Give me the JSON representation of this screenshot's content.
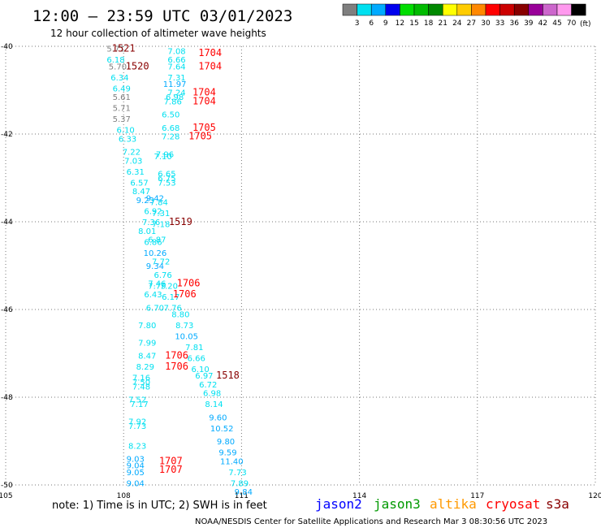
{
  "chart_data": {
    "type": "scatter",
    "title": "12:00 – 23:59 UTC 03/01/2023",
    "subtitle": "12 hour collection of altimeter wave heights",
    "xlim": [
      105,
      120
    ],
    "ylim": [
      -50,
      -40
    ],
    "x_ticks": [
      105,
      108,
      111,
      114,
      117,
      120
    ],
    "y_ticks": [
      -40,
      -42,
      -44,
      -46,
      -48,
      -50
    ],
    "grid": "dotted",
    "legend": {
      "unit": "(ft)",
      "bins": [
        {
          "label": "3",
          "color": "#7f7f7f"
        },
        {
          "label": "6",
          "color": "#00e0f0"
        },
        {
          "label": "9",
          "color": "#00aaff"
        },
        {
          "label": "12",
          "color": "#0000ee"
        },
        {
          "label": "15",
          "color": "#00dd00"
        },
        {
          "label": "18",
          "color": "#00bb00"
        },
        {
          "label": "21",
          "color": "#008800"
        },
        {
          "label": "24",
          "color": "#ffff00"
        },
        {
          "label": "27",
          "color": "#ffcc00"
        },
        {
          "label": "30",
          "color": "#ff8800"
        },
        {
          "label": "33",
          "color": "#ff0000"
        },
        {
          "label": "36",
          "color": "#cc0000"
        },
        {
          "label": "39",
          "color": "#880000"
        },
        {
          "label": "42",
          "color": "#990099"
        },
        {
          "label": "45",
          "color": "#cc66cc"
        },
        {
          "label": "70",
          "color": "#ff99ee"
        },
        {
          "label": "",
          "color": "#000000"
        }
      ]
    },
    "satellites": [
      {
        "name": "jason2",
        "color": "#0000ff"
      },
      {
        "name": "jason3",
        "color": "#009900"
      },
      {
        "name": "altika",
        "color": "#ff9900"
      },
      {
        "name": "cryosat",
        "color": "#ff0000"
      },
      {
        "name": "s3a",
        "color": "#880000"
      }
    ],
    "note": "note: 1) Time is in UTC; 2) SWH is in feet",
    "footer": "NOAA/NESDIS Center for Satellite Applications and Research   Mar  3 08:30:56 UTC 2023",
    "swh_points": [
      {
        "lon": 107.8,
        "lat": -40.05,
        "value": "5.71"
      },
      {
        "lon": 107.8,
        "lat": -40.3,
        "value": "6.18"
      },
      {
        "lon": 107.85,
        "lat": -40.45,
        "value": "5.70"
      },
      {
        "lon": 107.9,
        "lat": -40.7,
        "value": "6.34"
      },
      {
        "lon": 107.95,
        "lat": -40.95,
        "value": "6.49"
      },
      {
        "lon": 107.95,
        "lat": -41.15,
        "value": "5.61"
      },
      {
        "lon": 107.95,
        "lat": -41.4,
        "value": "5.71"
      },
      {
        "lon": 107.95,
        "lat": -41.65,
        "value": "5.37"
      },
      {
        "lon": 108.05,
        "lat": -41.9,
        "value": "6.10"
      },
      {
        "lon": 108.1,
        "lat": -42.1,
        "value": "6.33"
      },
      {
        "lon": 108.2,
        "lat": -42.4,
        "value": "7.22"
      },
      {
        "lon": 108.25,
        "lat": -42.6,
        "value": "7.03"
      },
      {
        "lon": 108.3,
        "lat": -42.85,
        "value": "6.31"
      },
      {
        "lon": 108.4,
        "lat": -43.1,
        "value": "6.57"
      },
      {
        "lon": 108.45,
        "lat": -43.3,
        "value": "8.47"
      },
      {
        "lon": 108.55,
        "lat": -43.5,
        "value": "9.23"
      },
      {
        "lon": 108.8,
        "lat": -43.45,
        "value": "9.42"
      },
      {
        "lon": 108.75,
        "lat": -43.75,
        "value": "6.92"
      },
      {
        "lon": 108.9,
        "lat": -43.55,
        "value": "7.84"
      },
      {
        "lon": 108.95,
        "lat": -43.8,
        "value": "7.31"
      },
      {
        "lon": 108.7,
        "lat": -44.0,
        "value": "7.36"
      },
      {
        "lon": 108.95,
        "lat": -44.05,
        "value": "7.18"
      },
      {
        "lon": 108.6,
        "lat": -44.2,
        "value": "8.01"
      },
      {
        "lon": 108.85,
        "lat": -44.4,
        "value": "6.87"
      },
      {
        "lon": 108.75,
        "lat": -44.45,
        "value": "6.86"
      },
      {
        "lon": 108.8,
        "lat": -44.7,
        "value": "10.26"
      },
      {
        "lon": 108.95,
        "lat": -44.9,
        "value": "7.72"
      },
      {
        "lon": 108.8,
        "lat": -45.0,
        "value": "9.34"
      },
      {
        "lon": 109.0,
        "lat": -45.2,
        "value": "6.76"
      },
      {
        "lon": 108.85,
        "lat": -45.4,
        "value": "7.46"
      },
      {
        "lon": 108.85,
        "lat": -45.45,
        "value": "7.79"
      },
      {
        "lon": 109.15,
        "lat": -45.45,
        "value": "7.20"
      },
      {
        "lon": 108.75,
        "lat": -45.65,
        "value": "6.43"
      },
      {
        "lon": 109.2,
        "lat": -45.7,
        "value": "6.17"
      },
      {
        "lon": 108.8,
        "lat": -45.95,
        "value": "6.70"
      },
      {
        "lon": 109.25,
        "lat": -45.95,
        "value": "7.76"
      },
      {
        "lon": 109.45,
        "lat": -46.1,
        "value": "8.80"
      },
      {
        "lon": 108.6,
        "lat": -46.35,
        "value": "7.80"
      },
      {
        "lon": 109.55,
        "lat": -46.35,
        "value": "8.73"
      },
      {
        "lon": 109.6,
        "lat": -46.6,
        "value": "10.05"
      },
      {
        "lon": 108.6,
        "lat": -46.75,
        "value": "7.99"
      },
      {
        "lon": 109.8,
        "lat": -46.85,
        "value": "7.81"
      },
      {
        "lon": 108.6,
        "lat": -47.05,
        "value": "8.47"
      },
      {
        "lon": 109.85,
        "lat": -47.1,
        "value": "6.66"
      },
      {
        "lon": 108.55,
        "lat": -47.3,
        "value": "8.29"
      },
      {
        "lon": 109.95,
        "lat": -47.35,
        "value": "6.10"
      },
      {
        "lon": 110.05,
        "lat": -47.5,
        "value": "6.97"
      },
      {
        "lon": 108.45,
        "lat": -47.55,
        "value": "7.16"
      },
      {
        "lon": 108.45,
        "lat": -47.65,
        "value": "7.50"
      },
      {
        "lon": 108.45,
        "lat": -47.75,
        "value": "7.48"
      },
      {
        "lon": 110.15,
        "lat": -47.7,
        "value": "6.72"
      },
      {
        "lon": 110.25,
        "lat": -47.9,
        "value": "6.98"
      },
      {
        "lon": 110.3,
        "lat": -48.15,
        "value": "8.14"
      },
      {
        "lon": 108.35,
        "lat": -48.05,
        "value": "7.52"
      },
      {
        "lon": 108.4,
        "lat": -48.15,
        "value": "7.17"
      },
      {
        "lon": 110.4,
        "lat": -48.45,
        "value": "9.60"
      },
      {
        "lon": 108.35,
        "lat": -48.55,
        "value": "7.92"
      },
      {
        "lon": 108.35,
        "lat": -48.65,
        "value": "7.73"
      },
      {
        "lon": 110.5,
        "lat": -48.7,
        "value": "10.52"
      },
      {
        "lon": 110.6,
        "lat": -49.0,
        "value": "9.80"
      },
      {
        "lon": 108.35,
        "lat": -49.1,
        "value": "8.23"
      },
      {
        "lon": 110.65,
        "lat": -49.25,
        "value": "9.59"
      },
      {
        "lon": 108.3,
        "lat": -49.4,
        "value": "9.03"
      },
      {
        "lon": 110.75,
        "lat": -49.45,
        "value": "11.40"
      },
      {
        "lon": 108.3,
        "lat": -49.55,
        "value": "9.04"
      },
      {
        "lon": 110.9,
        "lat": -49.7,
        "value": "7.73"
      },
      {
        "lon": 108.3,
        "lat": -49.7,
        "value": "9.05"
      },
      {
        "lon": 110.95,
        "lat": -49.95,
        "value": "7.89"
      },
      {
        "lon": 108.3,
        "lat": -49.95,
        "value": "9.04"
      },
      {
        "lon": 111.05,
        "lat": -50.15,
        "value": "9.84"
      },
      {
        "lon": 109.35,
        "lat": -40.1,
        "value": "7.08"
      },
      {
        "lon": 109.35,
        "lat": -40.3,
        "value": "6.66"
      },
      {
        "lon": 109.35,
        "lat": -40.45,
        "value": "7.64"
      },
      {
        "lon": 109.35,
        "lat": -40.7,
        "value": "7.31"
      },
      {
        "lon": 109.3,
        "lat": -40.85,
        "value": "11.97"
      },
      {
        "lon": 109.35,
        "lat": -41.05,
        "value": "7.24"
      },
      {
        "lon": 109.3,
        "lat": -41.15,
        "value": "6.98"
      },
      {
        "lon": 109.25,
        "lat": -41.25,
        "value": "7.86"
      },
      {
        "lon": 109.2,
        "lat": -41.55,
        "value": "6.50"
      },
      {
        "lon": 109.2,
        "lat": -41.85,
        "value": "6.68"
      },
      {
        "lon": 109.2,
        "lat": -42.05,
        "value": "7.28"
      },
      {
        "lon": 109.05,
        "lat": -42.45,
        "value": "7.96"
      },
      {
        "lon": 109.0,
        "lat": -42.5,
        "value": "7.10"
      },
      {
        "lon": 109.1,
        "lat": -42.9,
        "value": "6.65"
      },
      {
        "lon": 109.1,
        "lat": -43.0,
        "value": "6.75"
      },
      {
        "lon": 109.1,
        "lat": -43.1,
        "value": "7.53"
      }
    ],
    "time_points": [
      {
        "lon": 108.0,
        "lat": -40.05,
        "value": "1521",
        "satellite": "s3a"
      },
      {
        "lon": 108.35,
        "lat": -40.45,
        "value": "1520",
        "satellite": "s3a"
      },
      {
        "lon": 110.2,
        "lat": -40.15,
        "value": "1704",
        "satellite": "cryosat"
      },
      {
        "lon": 110.2,
        "lat": -40.45,
        "value": "1704",
        "satellite": "cryosat"
      },
      {
        "lon": 110.05,
        "lat": -41.05,
        "value": "1704",
        "satellite": "cryosat"
      },
      {
        "lon": 110.05,
        "lat": -41.25,
        "value": "1704",
        "satellite": "cryosat"
      },
      {
        "lon": 110.05,
        "lat": -41.85,
        "value": "1705",
        "satellite": "cryosat"
      },
      {
        "lon": 109.95,
        "lat": -42.05,
        "value": "1705",
        "satellite": "cryosat"
      },
      {
        "lon": 109.45,
        "lat": -44.0,
        "value": "1519",
        "satellite": "s3a"
      },
      {
        "lon": 109.65,
        "lat": -45.4,
        "value": "1706",
        "satellite": "cryosat"
      },
      {
        "lon": 109.55,
        "lat": -45.65,
        "value": "1706",
        "satellite": "cryosat"
      },
      {
        "lon": 109.35,
        "lat": -47.05,
        "value": "1706",
        "satellite": "cryosat"
      },
      {
        "lon": 109.35,
        "lat": -47.3,
        "value": "1706",
        "satellite": "cryosat"
      },
      {
        "lon": 110.65,
        "lat": -47.5,
        "value": "1518",
        "satellite": "s3a"
      },
      {
        "lon": 109.2,
        "lat": -49.45,
        "value": "1707",
        "satellite": "cryosat"
      },
      {
        "lon": 109.2,
        "lat": -49.65,
        "value": "1707",
        "satellite": "cryosat"
      }
    ]
  }
}
